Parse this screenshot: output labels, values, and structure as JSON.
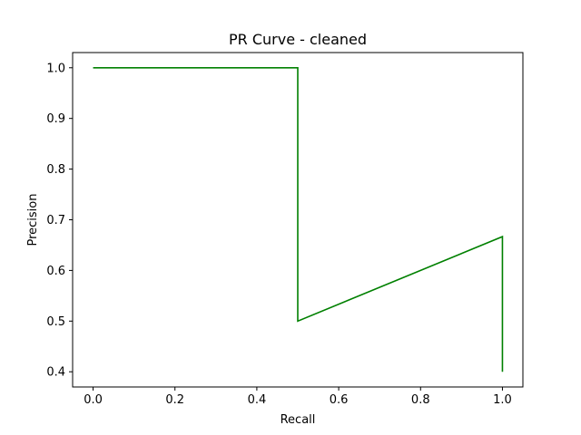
{
  "chart_data": {
    "type": "line",
    "title": "PR Curve - cleaned",
    "xlabel": "Recall",
    "ylabel": "Precision",
    "xlim": [
      -0.05,
      1.05
    ],
    "ylim": [
      0.37,
      1.03
    ],
    "xticks": [
      0.0,
      0.2,
      0.4,
      0.6,
      0.8,
      1.0
    ],
    "xtick_labels": [
      "0.0",
      "0.2",
      "0.4",
      "0.6",
      "0.8",
      "1.0"
    ],
    "yticks": [
      0.4,
      0.5,
      0.6,
      0.7,
      0.8,
      0.9,
      1.0
    ],
    "ytick_labels": [
      "0.4",
      "0.5",
      "0.6",
      "0.7",
      "0.8",
      "0.9",
      "1.0"
    ],
    "grid": false,
    "series": [
      {
        "color": "#008000",
        "x": [
          0.0,
          0.5,
          0.5,
          1.0,
          1.0
        ],
        "y": [
          1.0,
          1.0,
          0.5,
          0.6667,
          0.4
        ]
      }
    ]
  }
}
